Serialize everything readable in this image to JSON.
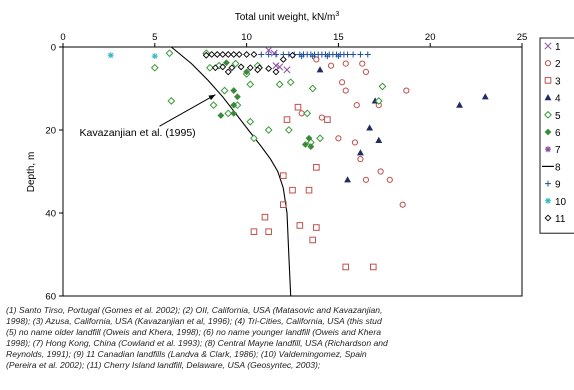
{
  "chart_data": {
    "type": "scatter",
    "title": "",
    "xlabel": "Total unit weight, kN/m",
    "xlabel_superscript": "3",
    "ylabel": "Depth, m",
    "xlim": [
      0,
      25
    ],
    "ylim": [
      0,
      60
    ],
    "y_inverted": true,
    "x_axis_position": "top",
    "xticks": [
      "0",
      "5",
      "10",
      "15",
      "20",
      "25"
    ],
    "yticks": [
      "0",
      "20",
      "40",
      "60"
    ],
    "grid": false,
    "legend_position": "right",
    "series": [
      {
        "name": "1",
        "marker": "x",
        "color": "#8a4f9e",
        "points": [
          [
            11.2,
            0.8
          ],
          [
            11.5,
            1.5
          ],
          [
            11.6,
            4.5
          ],
          [
            11.8,
            4.8
          ],
          [
            12.2,
            5.5
          ]
        ]
      },
      {
        "name": "2",
        "marker": "circle",
        "color": "#c0504d",
        "points": [
          [
            13.8,
            3.0
          ],
          [
            14.6,
            4.5
          ],
          [
            15.4,
            4.0
          ],
          [
            16.3,
            4.0
          ],
          [
            16.5,
            6.0
          ],
          [
            15.2,
            8.5
          ],
          [
            15.4,
            10.5
          ],
          [
            18.7,
            10.5
          ],
          [
            16.0,
            14.0
          ],
          [
            17.2,
            14.0
          ],
          [
            13.0,
            16.0
          ],
          [
            14.1,
            17.0
          ],
          [
            15.0,
            22.0
          ],
          [
            15.9,
            23.0
          ],
          [
            16.2,
            27.0
          ],
          [
            16.5,
            32.0
          ],
          [
            17.3,
            30.0
          ],
          [
            17.8,
            32.0
          ],
          [
            18.5,
            38.0
          ]
        ]
      },
      {
        "name": "3",
        "marker": "square",
        "color": "#c0504d",
        "points": [
          [
            12.8,
            14.5
          ],
          [
            12.2,
            17.5
          ],
          [
            14.4,
            17.5
          ],
          [
            13.8,
            29.0
          ],
          [
            12.0,
            31.0
          ],
          [
            12.5,
            34.5
          ],
          [
            13.4,
            34.5
          ],
          [
            12.0,
            38.0
          ],
          [
            13.8,
            43.5
          ],
          [
            12.9,
            43.0
          ],
          [
            13.6,
            46.5
          ],
          [
            11.0,
            41.0
          ],
          [
            10.4,
            44.5
          ],
          [
            11.2,
            44.5
          ],
          [
            15.4,
            53.0
          ],
          [
            16.9,
            53.0
          ]
        ]
      },
      {
        "name": "4",
        "marker": "triangle",
        "color": "#1f2a66",
        "points": [
          [
            14.0,
            5.5
          ],
          [
            17.0,
            13.0
          ],
          [
            21.6,
            14.0
          ],
          [
            23.0,
            12.0
          ],
          [
            16.7,
            19.5
          ],
          [
            17.2,
            22.5
          ],
          [
            16.2,
            25.5
          ],
          [
            15.5,
            32.0
          ]
        ]
      },
      {
        "name": "5",
        "marker": "diamond-open",
        "color": "#3a9a3a",
        "points": [
          [
            5.8,
            1.5
          ],
          [
            7.8,
            1.5
          ],
          [
            8.0,
            5.0
          ],
          [
            8.5,
            4.5
          ],
          [
            9.4,
            4.0
          ],
          [
            10.0,
            6.5
          ],
          [
            10.6,
            4.5
          ],
          [
            10.2,
            9.0
          ],
          [
            8.8,
            10.5
          ],
          [
            9.5,
            14.0
          ],
          [
            5.0,
            5.0
          ],
          [
            5.9,
            13.0
          ],
          [
            8.2,
            14.0
          ],
          [
            9.0,
            16.0
          ],
          [
            10.2,
            18.0
          ],
          [
            10.4,
            22.0
          ],
          [
            11.2,
            20.0
          ],
          [
            12.3,
            20.0
          ],
          [
            13.3,
            16.0
          ],
          [
            14.0,
            22.0
          ],
          [
            13.5,
            23.0
          ],
          [
            17.4,
            9.5
          ],
          [
            17.2,
            13.0
          ],
          [
            13.6,
            10.0
          ],
          [
            12.4,
            8.5
          ],
          [
            11.8,
            9.0
          ]
        ]
      },
      {
        "name": "6",
        "marker": "diamond-filled",
        "color": "#3a8a3a",
        "points": [
          [
            8.4,
            1.8
          ],
          [
            8.9,
            3.8
          ],
          [
            10.0,
            6.0
          ],
          [
            9.3,
            10.5
          ],
          [
            9.5,
            12.0
          ],
          [
            9.3,
            14.0
          ],
          [
            9.3,
            16.0
          ],
          [
            8.6,
            16.5
          ],
          [
            13.2,
            23.5
          ],
          [
            13.5,
            24.0
          ],
          [
            13.4,
            22.0
          ]
        ]
      },
      {
        "name": "7",
        "marker": "star",
        "color": "#8a4f9e",
        "points": []
      },
      {
        "name": "8",
        "marker": "line",
        "color": "#000000",
        "points": []
      },
      {
        "name": "9",
        "marker": "plus",
        "color": "#1f4fa0",
        "points": [
          [
            10.8,
            1.8
          ],
          [
            11.2,
            1.8
          ],
          [
            11.6,
            1.8
          ],
          [
            12.0,
            1.8
          ],
          [
            12.3,
            1.8
          ],
          [
            12.6,
            1.8
          ],
          [
            12.9,
            1.8
          ],
          [
            13.1,
            1.8
          ],
          [
            13.3,
            1.8
          ],
          [
            13.5,
            1.8
          ],
          [
            13.7,
            1.8
          ],
          [
            13.9,
            1.8
          ],
          [
            14.1,
            1.8
          ],
          [
            14.3,
            1.8
          ],
          [
            14.5,
            1.8
          ],
          [
            14.7,
            1.8
          ],
          [
            14.9,
            1.8
          ],
          [
            15.1,
            1.8
          ],
          [
            15.3,
            1.8
          ],
          [
            15.5,
            1.8
          ],
          [
            15.8,
            1.8
          ],
          [
            16.2,
            1.8
          ],
          [
            16.6,
            1.8
          ],
          [
            13.0,
            2.2
          ],
          [
            13.6,
            2.2
          ],
          [
            14.4,
            2.2
          ],
          [
            15.0,
            2.2
          ]
        ]
      },
      {
        "name": "10",
        "marker": "asterisk",
        "color": "#2fb8c0",
        "points": [
          [
            2.6,
            2.0
          ],
          [
            5.0,
            2.2
          ]
        ]
      },
      {
        "name": "11",
        "marker": "diamond-small",
        "color": "#000000",
        "points": [
          [
            7.8,
            2.0
          ],
          [
            8.1,
            1.8
          ],
          [
            8.4,
            1.8
          ],
          [
            8.7,
            1.8
          ],
          [
            9.0,
            1.8
          ],
          [
            9.3,
            1.8
          ],
          [
            9.6,
            1.8
          ],
          [
            10.0,
            1.8
          ],
          [
            10.4,
            1.8
          ],
          [
            8.3,
            5.0
          ],
          [
            8.7,
            4.8
          ],
          [
            9.2,
            5.0
          ],
          [
            9.7,
            4.8
          ],
          [
            10.2,
            5.0
          ],
          [
            10.7,
            5.0
          ],
          [
            11.2,
            5.2
          ],
          [
            11.6,
            6.0
          ],
          [
            12.0,
            3.0
          ],
          [
            12.5,
            2.0
          ],
          [
            9.0,
            6.0
          ],
          [
            10.6,
            5.5
          ]
        ]
      }
    ],
    "trend_line": {
      "name": "8",
      "points": [
        [
          5.9,
          0
        ],
        [
          7.0,
          4
        ],
        [
          7.9,
          8
        ],
        [
          8.7,
          12
        ],
        [
          9.4,
          16
        ],
        [
          10.1,
          20
        ],
        [
          10.8,
          24
        ],
        [
          11.3,
          27
        ],
        [
          11.7,
          30
        ],
        [
          12.0,
          34
        ],
        [
          12.2,
          40
        ],
        [
          12.3,
          50
        ],
        [
          12.4,
          60
        ]
      ]
    },
    "annotation": {
      "text": "Kavazanjian et al. (1995)",
      "x_label": 0.9,
      "y_label": 21.5,
      "arrow_to": [
        8.3,
        11.5
      ]
    }
  },
  "caption_lines": [
    "(1) Santo Tirso, Portugal (Gomes et al. 2002); (2) OII, California, USA (Matasovic and Kavazanjian,",
    "1998); (3) Azusa, California, USA (Kavazanjian et al, 1996); (4) Tri-Cities, California, USA (this stud",
    "(5) no name older landfill (Oweis and Khera, 1998); (6) no name younger landfill (Oweis and Khera",
    "1998); (7) Hong Kong, China (Cowland et al. 1993); (8) Central Mayne landfill, USA (Richardson and",
    "Reynolds, 1991); (9) 11 Canadian landfills (Landva & Clark, 1986); (10) Valdemingomez, Spain",
    "(Pereira et al. 2002); (11) Cherry Island landfill, Delaware, USA (Geosyntec, 2003);"
  ]
}
